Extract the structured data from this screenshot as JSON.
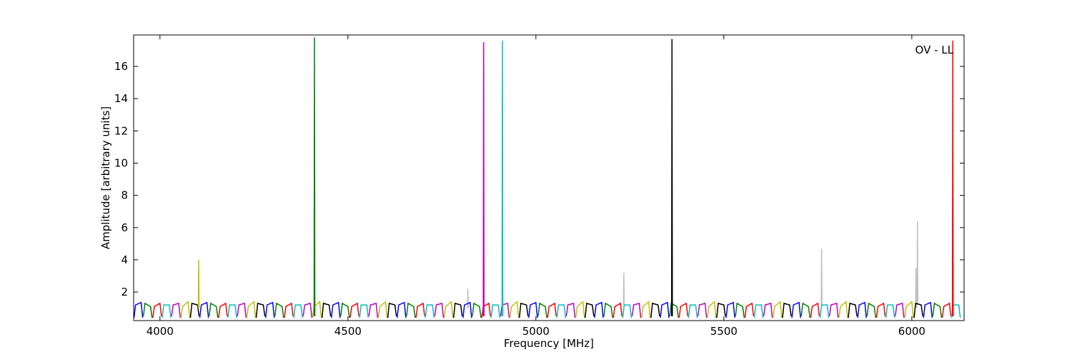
{
  "chart_data": {
    "type": "line",
    "xlabel": "Frequency [MHz]",
    "ylabel": "Amplitude [arbitrary units]",
    "annotation": "OV - LL",
    "xlim": [
      3930,
      6139
    ],
    "ylim": [
      0.23,
      17.95
    ],
    "xticks": [
      4000,
      4500,
      5000,
      5500,
      6000
    ],
    "yticks": [
      2,
      4,
      6,
      8,
      10,
      12,
      14,
      16
    ],
    "grid": false,
    "series": [
      {
        "color": "#bfbfbf",
        "x": [
          4818,
          4819,
          4820,
          null,
          5233,
          5234,
          5235,
          null,
          5759,
          5760,
          5761,
          null,
          6010,
          6011,
          6012,
          null,
          6014,
          6015,
          6016
        ],
        "values": [
          1.0,
          2.2,
          1.0,
          null,
          1.2,
          3.2,
          1.2,
          null,
          1.2,
          4.7,
          1.2,
          null,
          1.0,
          3.5,
          1.0,
          null,
          1.2,
          6.4,
          1.2
        ]
      },
      {
        "color": "#0000ff",
        "x": [
          3931,
          3935,
          3950,
          3954,
          null,
          4106,
          4110,
          4125,
          4129,
          null,
          4281,
          4285,
          4300,
          4304,
          null,
          4456,
          4460,
          4475,
          4479,
          null,
          4631,
          4635,
          4650,
          4654,
          null,
          4806,
          4810,
          4825,
          4829,
          null,
          4981,
          4985,
          5000,
          5004,
          null,
          5156,
          5160,
          5175,
          5179,
          null,
          5331,
          5335,
          5350,
          5354,
          null,
          5506,
          5510,
          5525,
          5529,
          null,
          5681,
          5685,
          5700,
          5704,
          null,
          5856,
          5860,
          5875,
          5879,
          null,
          6031,
          6035,
          6050,
          6054
        ],
        "values": [
          0.4,
          1.2,
          1.35,
          0.4,
          null,
          0.4,
          1.2,
          1.35,
          0.4,
          null,
          0.4,
          1.2,
          1.35,
          0.4,
          null,
          0.4,
          1.2,
          1.35,
          0.4,
          null,
          0.4,
          1.2,
          1.35,
          0.4,
          null,
          0.4,
          1.2,
          1.35,
          0.4,
          null,
          0.4,
          1.2,
          1.35,
          0.4,
          null,
          0.4,
          1.2,
          1.35,
          0.4,
          null,
          0.4,
          1.2,
          1.35,
          0.4,
          null,
          0.4,
          1.2,
          1.35,
          0.4,
          null,
          0.4,
          1.2,
          1.35,
          0.4,
          null,
          0.4,
          1.2,
          1.35,
          0.4,
          null,
          0.4,
          1.2,
          1.35,
          0.4
        ]
      },
      {
        "color": "#008000",
        "x": [
          3956,
          3960,
          3975,
          3979,
          null,
          4131,
          4135,
          4150,
          4154,
          null,
          4306,
          4310,
          4325,
          4329,
          null,
          4481,
          4485,
          4500,
          4504,
          null,
          4656,
          4660,
          4675,
          4679,
          null,
          4831,
          4835,
          4850,
          4854,
          null,
          5006,
          5010,
          5025,
          5029,
          null,
          5181,
          5185,
          5200,
          5204,
          null,
          5356,
          5360,
          5375,
          5379,
          null,
          5531,
          5535,
          5550,
          5554,
          null,
          5706,
          5710,
          5725,
          5729,
          null,
          5881,
          5885,
          5900,
          5904,
          null,
          6056,
          6060,
          6075,
          6079
        ],
        "values": [
          0.5,
          1.3,
          1.1,
          0.4,
          null,
          0.5,
          1.3,
          1.1,
          0.4,
          null,
          0.5,
          1.3,
          1.1,
          0.4,
          null,
          0.5,
          1.3,
          1.1,
          0.4,
          null,
          0.5,
          1.3,
          1.1,
          0.4,
          null,
          0.5,
          1.3,
          1.1,
          0.4,
          null,
          0.5,
          1.3,
          1.1,
          0.4,
          null,
          0.5,
          1.3,
          1.1,
          0.4,
          null,
          0.5,
          1.3,
          1.1,
          0.4,
          null,
          0.5,
          1.3,
          1.1,
          0.4,
          null,
          0.5,
          1.3,
          1.1,
          0.4,
          null,
          0.5,
          1.3,
          1.1,
          0.4,
          null,
          0.5,
          1.3,
          1.1,
          0.4
        ]
      },
      {
        "color": "#ff0000",
        "x": [
          3981,
          3985,
          4000,
          4004,
          null,
          4156,
          4160,
          4175,
          4179,
          null,
          4331,
          4335,
          4350,
          4354,
          null,
          4506,
          4510,
          4525,
          4529,
          null,
          4681,
          4685,
          4700,
          4704,
          null,
          4856,
          4860,
          4875,
          4879,
          null,
          5031,
          5035,
          5050,
          5054,
          null,
          5206,
          5210,
          5225,
          5229,
          null,
          5381,
          5385,
          5400,
          5404,
          null,
          5556,
          5560,
          5575,
          5579,
          null,
          5731,
          5735,
          5750,
          5754,
          null,
          5906,
          5910,
          5925,
          5929,
          null,
          6081,
          6085,
          6100,
          6104
        ],
        "values": [
          0.4,
          1.1,
          1.3,
          0.5,
          null,
          0.4,
          1.1,
          1.3,
          0.5,
          null,
          0.4,
          1.1,
          1.3,
          0.5,
          null,
          0.4,
          1.1,
          1.3,
          0.5,
          null,
          0.4,
          1.1,
          1.3,
          0.5,
          null,
          0.4,
          1.1,
          1.3,
          0.5,
          null,
          0.4,
          1.1,
          1.3,
          0.5,
          null,
          0.4,
          1.1,
          1.3,
          0.5,
          null,
          0.4,
          1.1,
          1.3,
          0.5,
          null,
          0.4,
          1.1,
          1.3,
          0.5,
          null,
          0.4,
          1.1,
          1.3,
          0.5,
          null,
          0.4,
          1.1,
          1.3,
          0.5,
          null,
          0.4,
          1.1,
          1.3,
          0.5
        ]
      },
      {
        "color": "#00bfbf",
        "x": [
          4006,
          4010,
          4025,
          4029,
          null,
          4181,
          4185,
          4200,
          4204,
          null,
          4356,
          4360,
          4375,
          4379,
          null,
          4531,
          4535,
          4550,
          4554,
          null,
          4706,
          4710,
          4725,
          4729,
          null,
          4881,
          4885,
          4900,
          4904,
          null,
          5056,
          5060,
          5075,
          5079,
          null,
          5231,
          5235,
          5250,
          5254,
          null,
          5406,
          5410,
          5425,
          5429,
          null,
          5581,
          5585,
          5600,
          5604,
          null,
          5756,
          5760,
          5775,
          5779,
          null,
          5931,
          5935,
          5950,
          5954,
          null,
          6106,
          6110,
          6125,
          6129
        ],
        "values": [
          0.4,
          1.2,
          1.2,
          0.4,
          null,
          0.4,
          1.2,
          1.2,
          0.4,
          null,
          0.4,
          1.2,
          1.2,
          0.4,
          null,
          0.4,
          1.2,
          1.2,
          0.4,
          null,
          0.4,
          1.2,
          1.2,
          0.4,
          null,
          0.4,
          1.2,
          1.2,
          0.4,
          null,
          0.4,
          1.2,
          1.2,
          0.4,
          null,
          0.4,
          1.2,
          1.2,
          0.4,
          null,
          0.4,
          1.2,
          1.2,
          0.4,
          null,
          0.4,
          1.2,
          1.2,
          0.4,
          null,
          0.4,
          1.2,
          1.2,
          0.4,
          null,
          0.4,
          1.2,
          1.2,
          0.4,
          null,
          0.4,
          1.2,
          1.2,
          0.4
        ]
      },
      {
        "color": "#bf00bf",
        "x": [
          4031,
          4035,
          4050,
          4054,
          null,
          4206,
          4210,
          4225,
          4229,
          null,
          4381,
          4385,
          4400,
          4404,
          null,
          4556,
          4560,
          4575,
          4579,
          null,
          4731,
          4735,
          4750,
          4754,
          null,
          4906,
          4910,
          4925,
          4929,
          null,
          5081,
          5085,
          5100,
          5104,
          null,
          5256,
          5260,
          5275,
          5279,
          null,
          5431,
          5435,
          5450,
          5454,
          null,
          5606,
          5610,
          5625,
          5629,
          null,
          5781,
          5785,
          5800,
          5804,
          null,
          5956,
          5960,
          5975,
          5979
        ],
        "values": [
          0.5,
          1.2,
          1.3,
          0.4,
          null,
          0.5,
          1.2,
          1.3,
          0.4,
          null,
          0.5,
          1.2,
          1.3,
          0.4,
          null,
          0.5,
          1.2,
          1.3,
          0.4,
          null,
          0.5,
          1.2,
          1.3,
          0.4,
          null,
          0.5,
          1.2,
          1.3,
          0.4,
          null,
          0.5,
          1.2,
          1.3,
          0.4,
          null,
          0.5,
          1.2,
          1.3,
          0.4,
          null,
          0.5,
          1.2,
          1.3,
          0.4,
          null,
          0.5,
          1.2,
          1.3,
          0.4,
          null,
          0.5,
          1.2,
          1.3,
          0.4,
          null,
          0.5,
          1.2,
          1.3,
          0.4
        ]
      },
      {
        "color": "#bfbf00",
        "x": [
          4056,
          4060,
          4075,
          4079,
          null,
          4231,
          4235,
          4250,
          4254,
          null,
          4406,
          4410,
          4425,
          4429,
          null,
          4581,
          4585,
          4600,
          4604,
          null,
          4756,
          4760,
          4775,
          4779,
          null,
          4931,
          4935,
          4950,
          4954,
          null,
          5106,
          5110,
          5125,
          5129,
          null,
          5281,
          5285,
          5300,
          5304,
          null,
          5456,
          5460,
          5475,
          5479,
          null,
          5631,
          5635,
          5650,
          5654,
          null,
          5806,
          5810,
          5825,
          5829,
          null,
          5981,
          5985,
          6000,
          6004
        ],
        "values": [
          0.4,
          1.1,
          1.4,
          0.4,
          null,
          0.4,
          1.1,
          1.4,
          0.4,
          null,
          0.4,
          1.1,
          1.4,
          0.4,
          null,
          0.4,
          1.1,
          1.4,
          0.4,
          null,
          0.4,
          1.1,
          1.4,
          0.4,
          null,
          0.4,
          1.1,
          1.4,
          0.4,
          null,
          0.4,
          1.1,
          1.4,
          0.4,
          null,
          0.4,
          1.1,
          1.4,
          0.4,
          null,
          0.4,
          1.1,
          1.4,
          0.4,
          null,
          0.4,
          1.1,
          1.4,
          0.4,
          null,
          0.4,
          1.1,
          1.4,
          0.4,
          null,
          0.4,
          1.1,
          1.4,
          0.4
        ]
      },
      {
        "color": "#000000",
        "x": [
          4081,
          4085,
          4100,
          4104,
          null,
          4256,
          4260,
          4275,
          4279,
          null,
          4431,
          4435,
          4450,
          4454,
          null,
          4606,
          4610,
          4625,
          4629,
          null,
          4781,
          4785,
          4800,
          4804,
          null,
          4956,
          4960,
          4975,
          4979,
          null,
          5131,
          5135,
          5150,
          5154,
          null,
          5306,
          5310,
          5325,
          5329,
          null,
          5481,
          5485,
          5500,
          5504,
          null,
          5656,
          5660,
          5675,
          5679,
          null,
          5831,
          5835,
          5850,
          5854,
          null,
          6006,
          6010,
          6025,
          6029
        ],
        "values": [
          0.4,
          1.3,
          1.2,
          0.5,
          null,
          0.4,
          1.3,
          1.2,
          0.5,
          null,
          0.4,
          1.3,
          1.2,
          0.5,
          null,
          0.4,
          1.3,
          1.2,
          0.5,
          null,
          0.4,
          1.3,
          1.2,
          0.5,
          null,
          0.4,
          1.3,
          1.2,
          0.5,
          null,
          0.4,
          1.3,
          1.2,
          0.5,
          null,
          0.4,
          1.3,
          1.2,
          0.5,
          null,
          0.4,
          1.3,
          1.2,
          0.5,
          null,
          0.4,
          1.3,
          1.2,
          0.5,
          null,
          0.4,
          1.3,
          1.2,
          0.5,
          null,
          0.4,
          1.3,
          1.2,
          0.5
        ]
      },
      {
        "color": "#bfbf00",
        "x": [
          4102,
          4103,
          4104
        ],
        "values": [
          1.0,
          4.0,
          1.0
        ]
      },
      {
        "color": "#008000",
        "x": [
          4410,
          4411,
          4412
        ],
        "values": [
          0.5,
          17.8,
          0.5
        ]
      },
      {
        "color": "#bf00bf",
        "x": [
          4860,
          4861,
          4862
        ],
        "values": [
          0.5,
          17.5,
          0.5
        ]
      },
      {
        "color": "#00bfbf",
        "x": [
          4910,
          4911,
          4912
        ],
        "values": [
          0.5,
          17.6,
          0.5
        ]
      },
      {
        "color": "#000000",
        "x": [
          5361,
          5362,
          5363
        ],
        "values": [
          0.5,
          17.7,
          0.5
        ]
      },
      {
        "color": "#ff0000",
        "x": [
          6108,
          6109,
          6110
        ],
        "values": [
          0.5,
          17.6,
          0.5
        ]
      }
    ]
  }
}
